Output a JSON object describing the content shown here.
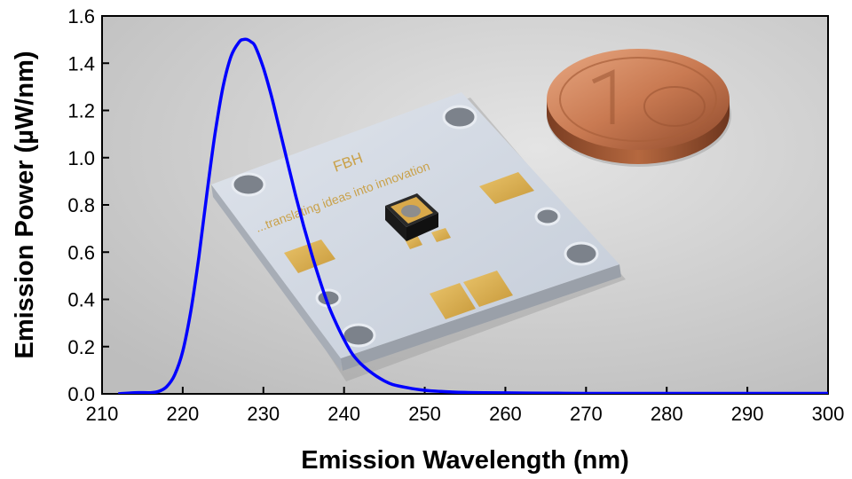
{
  "chart_data": {
    "type": "line",
    "title": "",
    "xlabel": "Emission Wavelength (nm)",
    "ylabel": "Emission Power (µW/nm)",
    "xlim": [
      210,
      300
    ],
    "ylim": [
      0.0,
      1.6
    ],
    "xticks": [
      "210",
      "220",
      "230",
      "240",
      "250",
      "260",
      "270",
      "280",
      "290",
      "300"
    ],
    "yticks": [
      "0.0",
      "0.2",
      "0.4",
      "0.6",
      "0.8",
      "1.0",
      "1.2",
      "1.4",
      "1.6"
    ],
    "grid": false,
    "legend": "none",
    "series": [
      {
        "color": "#0000ff",
        "x": [
          212,
          214,
          216,
          217,
          218,
          219,
          220,
          221,
          222,
          223,
          224,
          225,
          226,
          227,
          227.5,
          228,
          228.5,
          229,
          230,
          231,
          232,
          233,
          234,
          235,
          236,
          237,
          238,
          239,
          240,
          241,
          242,
          243,
          244,
          245,
          246,
          248,
          250,
          252,
          255,
          260,
          265,
          270,
          280,
          290,
          300
        ],
        "y": [
          0.0,
          0.005,
          0.005,
          0.01,
          0.03,
          0.08,
          0.18,
          0.35,
          0.58,
          0.85,
          1.1,
          1.3,
          1.43,
          1.49,
          1.5,
          1.5,
          1.49,
          1.47,
          1.38,
          1.26,
          1.12,
          0.98,
          0.84,
          0.71,
          0.59,
          0.48,
          0.38,
          0.3,
          0.23,
          0.17,
          0.13,
          0.1,
          0.075,
          0.055,
          0.04,
          0.025,
          0.015,
          0.01,
          0.006,
          0.004,
          0.003,
          0.002,
          0.002,
          0.002,
          0.002
        ]
      }
    ]
  },
  "photo": {
    "board_brand": "FBH",
    "board_slogan": "...translating ideas into innovation"
  },
  "style": {
    "line_color": "#0000ff",
    "plot_background": "#d5d5d5"
  }
}
